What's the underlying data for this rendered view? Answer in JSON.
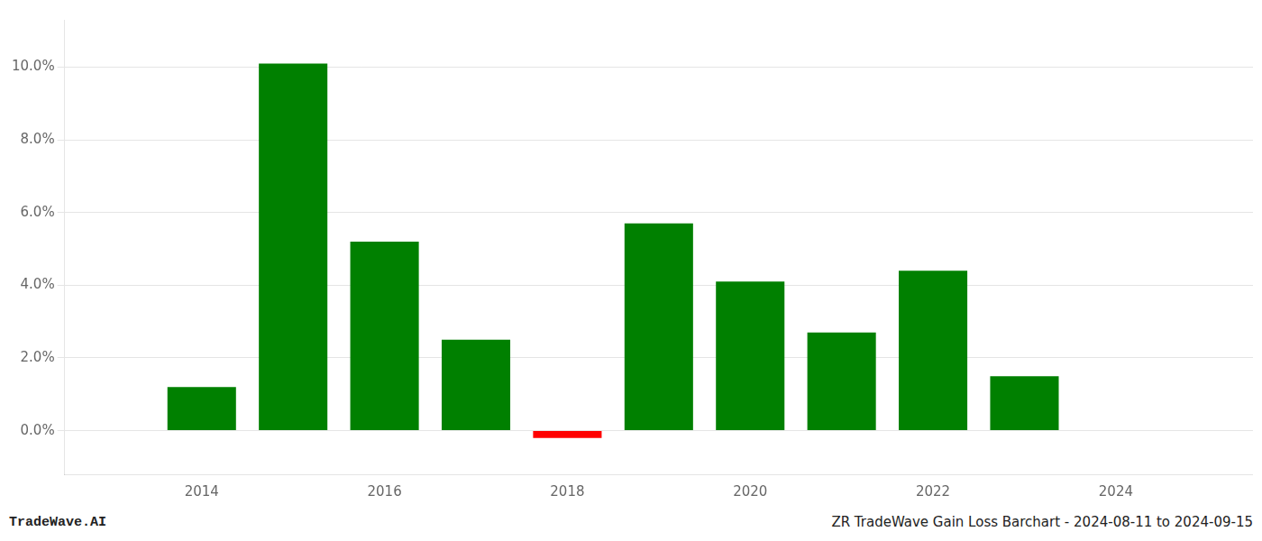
{
  "chart_data": {
    "type": "bar",
    "x": [
      2014,
      2015,
      2016,
      2017,
      2018,
      2019,
      2020,
      2021,
      2022,
      2023
    ],
    "values": [
      0.012,
      0.101,
      0.052,
      0.025,
      -0.002,
      0.057,
      0.041,
      0.027,
      0.044,
      0.015
    ],
    "colors": [
      "#008000",
      "#008000",
      "#008000",
      "#008000",
      "#ff0000",
      "#008000",
      "#008000",
      "#008000",
      "#008000",
      "#008000"
    ],
    "xlim": [
      2012.5,
      2025.5
    ],
    "xticks": [
      2014,
      2016,
      2018,
      2020,
      2022,
      2024
    ],
    "ylim": [
      -0.012,
      0.113
    ],
    "yticks": [
      {
        "value": 0.0,
        "label": "0.0%"
      },
      {
        "value": 0.02,
        "label": "2.0%"
      },
      {
        "value": 0.04,
        "label": "4.0%"
      },
      {
        "value": 0.06,
        "label": "6.0%"
      },
      {
        "value": 0.08,
        "label": "8.0%"
      },
      {
        "value": 0.1,
        "label": "10.0%"
      }
    ],
    "grid": true,
    "annotations": [
      "TradeWave.AI",
      "ZR TradeWave Gain Loss Barchart - 2024-08-11 to 2024-09-15"
    ]
  }
}
